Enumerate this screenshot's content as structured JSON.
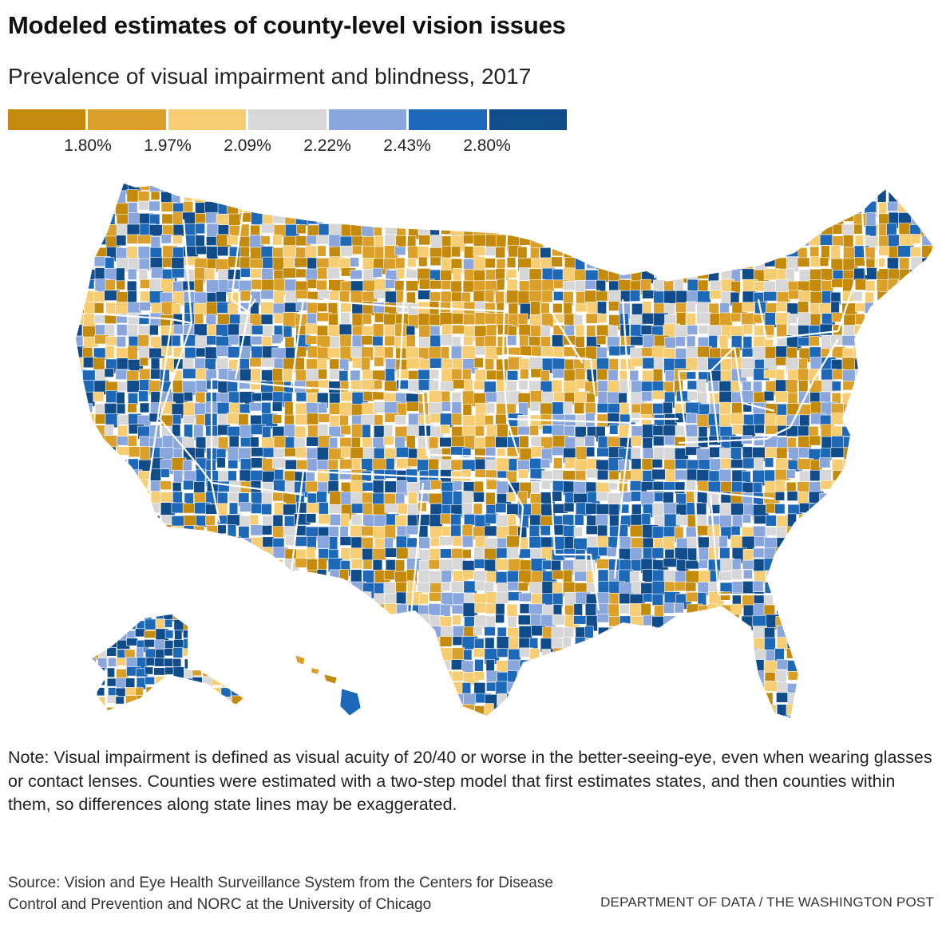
{
  "header": {
    "title": "Modeled estimates of county-level vision issues",
    "subtitle": "Prevalence of visual impairment and blindness, 2017"
  },
  "legend": {
    "colors": [
      "#c48a0c",
      "#dba02a",
      "#f6cd73",
      "#d7d7d7",
      "#89a7dc",
      "#1e68b8",
      "#104c8a"
    ],
    "breaks": [
      "1.80%",
      "1.97%",
      "2.09%",
      "2.22%",
      "2.43%",
      "2.80%"
    ]
  },
  "map": {
    "type": "choropleth",
    "geography": "U.S. counties",
    "measure": "Prevalence of visual impairment and blindness, 2017"
  },
  "footer": {
    "note": "Note: Visual impairment is defined as visual acuity of 20/40 or worse in the better-seeing-eye, even when wearing glasses or contact lenses. Counties were estimated with a two-step model that first estimates states, and then counties within them, so differences along state lines may be exaggerated.",
    "source": "Source: Vision and Eye Health Surveillance System from the Centers for Disease Control and Prevention and NORC at the University of Chicago",
    "credit": "DEPARTMENT OF DATA / THE WASHINGTON POST"
  }
}
